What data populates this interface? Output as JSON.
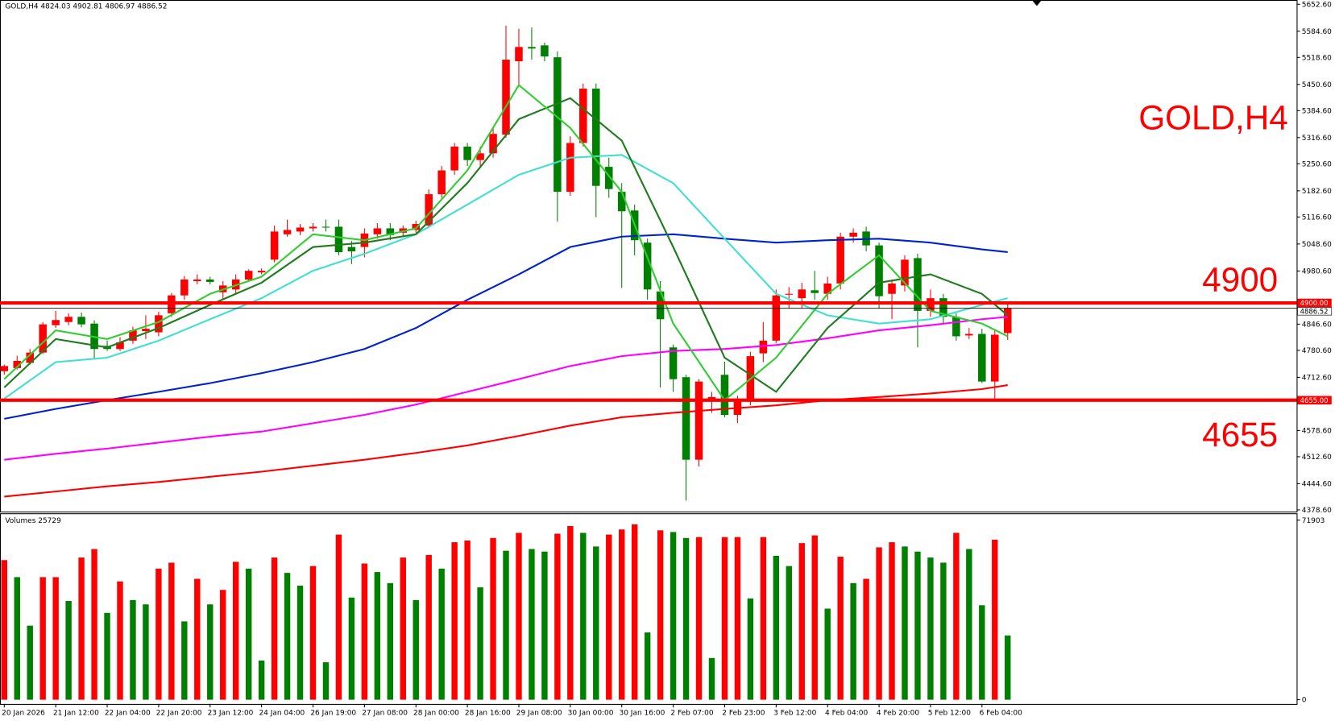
{
  "chart_data": {
    "type": "candlestick",
    "title": "GOLD,H4",
    "categories": [
      "20 Jan 2026",
      null,
      null,
      null,
      "21 Jan 12:00",
      null,
      null,
      null,
      "22 Jan 04:00",
      null,
      null,
      null,
      "22 Jan 20:00",
      null,
      null,
      null,
      "23 Jan 12:00",
      null,
      null,
      null,
      "24 Jan 04:00",
      null,
      null,
      null,
      "26 Jan 19:00",
      null,
      null,
      null,
      "27 Jan 08:00",
      null,
      null,
      null,
      "28 Jan 00:00",
      null,
      null,
      null,
      "28 Jan 16:00",
      null,
      null,
      null,
      "29 Jan 08:00",
      null,
      null,
      null,
      "30 Jan 00:00",
      null,
      null,
      null,
      "30 Jan 16:00",
      null,
      null,
      null,
      "2 Feb 07:00",
      null,
      null,
      null,
      "2 Feb 23:00",
      null,
      null,
      null,
      "3 Feb 12:00",
      null,
      null,
      null,
      "4 Feb 04:00",
      null,
      null,
      null,
      "4 Feb 20:00",
      null,
      null,
      null,
      "5 Feb 12:00",
      null,
      null,
      null,
      "6 Feb 04:00",
      null,
      null
    ],
    "candles": {
      "open": [
        4728,
        4736,
        4749,
        4775,
        4844,
        4852,
        4865,
        4848,
        4792,
        4784,
        4805,
        4829,
        4826,
        4874,
        4919,
        4955,
        4959,
        4927,
        4934,
        4959,
        4977,
        5009,
        5073,
        5080,
        5088,
        5092,
        5092,
        5041,
        5041,
        5073,
        5088,
        5077,
        5084,
        5095,
        5174,
        5234,
        5294,
        5260,
        5277,
        5324,
        5509,
        5545,
        5549,
        5519,
        5180,
        5303,
        5440,
        5243,
        5180,
        5133,
        5052,
        4929,
        4788,
        4713,
        4505,
        4655,
        4719,
        4618,
        4655,
        4773,
        4805,
        4921,
        4912,
        4932,
        4923,
        4949,
        5067,
        5080,
        5045,
        4923,
        4944,
        5013,
        4880,
        4912,
        4865,
        4818,
        4822,
        4702,
        4824.03
      ],
      "high": [
        4745,
        4767,
        4784,
        4852,
        4880,
        4874,
        4876,
        4856,
        4805,
        4814,
        4840,
        4869,
        4878,
        4925,
        4968,
        4972,
        4966,
        4955,
        4972,
        4985,
        4987,
        5095,
        5110,
        5099,
        5101,
        5110,
        5110,
        5056,
        5088,
        5101,
        5101,
        5095,
        5107,
        5186,
        5245,
        5303,
        5303,
        5294,
        5341,
        5599,
        5591,
        5594,
        5556,
        5534,
        5320,
        5453,
        5453,
        5266,
        5202,
        5148,
        5062,
        4955,
        4795,
        4719,
        4708,
        4676,
        4752,
        4666,
        4777,
        4852,
        4934,
        4940,
        4951,
        4981,
        4966,
        5077,
        5088,
        5092,
        5052,
        4959,
        5020,
        5024,
        4934,
        4923,
        4874,
        4837,
        4835,
        4831,
        4902.81
      ],
      "low": [
        4719,
        4732,
        4745,
        4771,
        4837,
        4844,
        4839,
        4758,
        4779,
        4779,
        4797,
        4809,
        4816,
        4865,
        4908,
        4947,
        4947,
        4908,
        4923,
        4955,
        4972,
        5002,
        5067,
        5071,
        5080,
        5080,
        5020,
        4998,
        5015,
        5062,
        5058,
        5067,
        5077,
        5088,
        5165,
        5223,
        5245,
        5243,
        5266,
        5316,
        5449,
        5513,
        5509,
        5105,
        5170,
        5294,
        5116,
        5165,
        4938,
        5020,
        4908,
        4687,
        4676,
        4402,
        4488,
        4623,
        4612,
        4597,
        4642,
        4751,
        4799,
        4887,
        4887,
        4908,
        4908,
        4934,
        5052,
        5030,
        4887,
        4859,
        4929,
        4788,
        4865,
        4848,
        4805,
        4809,
        4698,
        4659,
        4806.97
      ],
      "close": [
        4741,
        4754,
        4775,
        4846,
        4857,
        4865,
        4846,
        4784,
        4784,
        4801,
        4831,
        4835,
        4869,
        4919,
        4959,
        4959,
        4953,
        4944,
        4959,
        4981,
        4981,
        5080,
        5084,
        5090,
        5092,
        5090,
        5028,
        5030,
        5075,
        5088,
        5071,
        5088,
        5099,
        5174,
        5234,
        5294,
        5260,
        5277,
        5326,
        5513,
        5545,
        5541,
        5521,
        5180,
        5303,
        5440,
        5195,
        5187,
        5131,
        5058,
        4934,
        4859,
        4708,
        4505,
        4702,
        4663,
        4618,
        4655,
        4766,
        4805,
        4919,
        4923,
        4934,
        4925,
        4949,
        5067,
        5077,
        5045,
        4917,
        4949,
        5009,
        4880,
        4912,
        4865,
        4816,
        4822,
        4702,
        4820,
        4886.52
      ]
    },
    "up_color": "#ff0000",
    "down_color": "#008000",
    "ylim": [
      4378.6,
      5652.6
    ],
    "yticks": [
      {
        "value": 5652.6,
        "label": "5652.60"
      },
      {
        "value": 5584.6,
        "label": "5584.60"
      },
      {
        "value": 5518.6,
        "label": "5518.60"
      },
      {
        "value": 5450.6,
        "label": "5450.60"
      },
      {
        "value": 5384.6,
        "label": "5384.60"
      },
      {
        "value": 5316.6,
        "label": "5316.60"
      },
      {
        "value": 5250.6,
        "label": "5250.60"
      },
      {
        "value": 5182.6,
        "label": "5182.60"
      },
      {
        "value": 5116.6,
        "label": "5116.60"
      },
      {
        "value": 5048.6,
        "label": "5048.60"
      },
      {
        "value": 4980.6,
        "label": "4980.60"
      },
      {
        "value": 4846.6,
        "label": "4846.60"
      },
      {
        "value": 4780.6,
        "label": "4780.60"
      },
      {
        "value": 4712.6,
        "label": "4712.60"
      },
      {
        "value": 4578.6,
        "label": "4578.60"
      },
      {
        "value": 4512.6,
        "label": "4512.60"
      },
      {
        "value": 4444.6,
        "label": "4444.60"
      },
      {
        "value": 4378.6,
        "label": "4378.60"
      }
    ],
    "indicator_x": [
      0,
      4,
      8,
      12,
      16,
      20,
      24,
      28,
      32,
      36,
      40,
      44,
      48,
      52,
      56,
      60,
      64,
      68,
      72,
      76,
      78
    ],
    "indicators": [
      {
        "color": "#ff0000",
        "values": [
          4412,
          4425,
          4438,
          4449,
          4462,
          4475,
          4490,
          4505,
          4522,
          4541,
          4565,
          4591,
          4612,
          4623,
          4633,
          4642,
          4655,
          4663,
          4672,
          4683,
          4693
        ]
      },
      {
        "color": "#ff00ff",
        "values": [
          4505,
          4520,
          4533,
          4548,
          4563,
          4576,
          4597,
          4618,
          4644,
          4676,
          4708,
          4741,
          4766,
          4779,
          4784,
          4794,
          4811,
          4831,
          4844,
          4859,
          4865
        ]
      },
      {
        "color": "#0022cc",
        "values": [
          4608,
          4633,
          4655,
          4676,
          4698,
          4723,
          4751,
          4784,
          4837,
          4908,
          4972,
          5041,
          5067,
          5073,
          5062,
          5052,
          5058,
          5062,
          5052,
          5035,
          5028
        ]
      },
      {
        "color": "#40e0d0",
        "values": [
          4659,
          4751,
          4762,
          4805,
          4859,
          4912,
          4981,
          5024,
          5073,
          5148,
          5223,
          5266,
          5273,
          5202,
          5062,
          4923,
          4869,
          4848,
          4859,
          4895,
          4912
        ]
      },
      {
        "color": "#1e7b1e",
        "values": [
          4687,
          4809,
          4788,
          4837,
          4895,
          4951,
          5041,
          5052,
          5073,
          5202,
          5363,
          5416,
          5309,
          5041,
          4762,
          4676,
          4837,
          4951,
          4972,
          4923,
          4869
        ]
      },
      {
        "color": "#32cd32",
        "values": [
          4708,
          4831,
          4809,
          4852,
          4923,
          4966,
          5073,
          5058,
          5088,
          5234,
          5449,
          5341,
          5180,
          4848,
          4655,
          4762,
          4923,
          5020,
          4880,
          4848,
          4816
        ]
      }
    ],
    "levels": [
      {
        "value": 4900,
        "label": "4900.00"
      },
      {
        "value": 4655,
        "label": "4655.00"
      }
    ],
    "volume": {
      "label": "Volumes",
      "values": [
        55891,
        49075,
        29650,
        49075,
        49075,
        39533,
        56914,
        60322,
        34762,
        47371,
        39874,
        38170,
        52483,
        54869,
        31354,
        48394,
        38170,
        43963,
        55210,
        52483,
        15677,
        56914,
        50779,
        45667,
        53506,
        14995,
        66115,
        40896,
        54528,
        51120,
        46690,
        56914,
        39874,
        57936,
        52483,
        63048,
        63730,
        44986,
        64752,
        59640,
        66797,
        60322,
        59299,
        66456,
        69523,
        66797,
        61344,
        66115,
        68160,
        70205,
        26923,
        67819,
        67138,
        64752,
        65093,
        16699,
        65093,
        65093,
        40555,
        65093,
        57595,
        53506,
        62707,
        65774,
        36466,
        57254,
        46690,
        48394,
        61003,
        63048,
        61344,
        59299,
        56914,
        54869,
        66797,
        60322,
        37829,
        64070,
        25729
      ],
      "ylim": [
        0,
        71903
      ],
      "yticks": [
        0,
        71903
      ],
      "up_color": "#ff0000",
      "down_color": "#008000"
    }
  }
}
